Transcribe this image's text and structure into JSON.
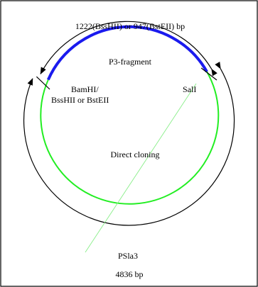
{
  "diagram": {
    "top_size_label": "1222(BssHII) or 947(BstEII) bp",
    "fragment_label": "P3-fragment",
    "left_site_label_line1": "BamHI/",
    "left_site_label_line2": "BssHII or BstEII",
    "right_site_label": "SalI",
    "center_label": "Direct cloning",
    "plasmid_name": "PSla3",
    "plasmid_size": "4836 bp"
  },
  "colors": {
    "insert": "#1a1aee",
    "vector": "#22ee22",
    "outline": "#000000",
    "background": "#ffffff"
  }
}
